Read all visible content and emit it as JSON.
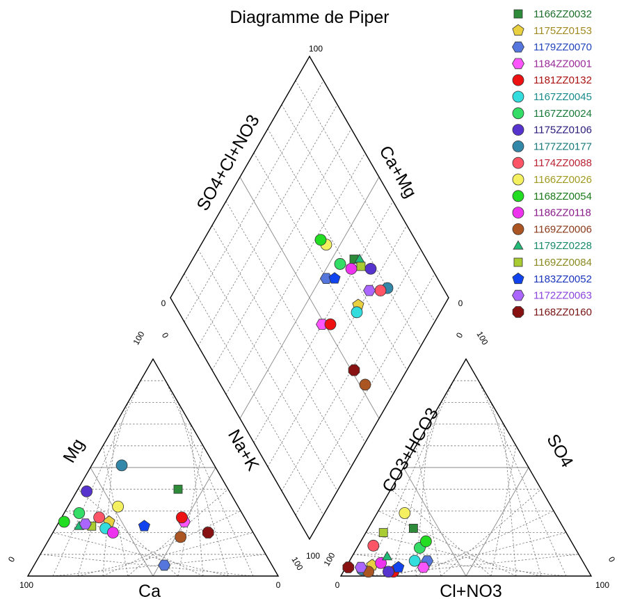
{
  "chart_data": {
    "type": "scatter",
    "title": "Diagramme de Piper",
    "axis_labels": {
      "cation_left": "Mg",
      "cation_right": "Na+K",
      "cation_bottom": "Ca",
      "anion_left": "CO3+HCO3",
      "anion_right": "SO4",
      "anion_bottom": "Cl+NO3",
      "diamond_upper_left": "SO4+Cl+NO3",
      "diamond_upper_right": "Ca+Mg"
    },
    "tick_labels": {
      "cation_bottom_left": "100",
      "cation_bottom_right": "0",
      "cation_left_bottom": "0",
      "cation_top_left": "100",
      "cation_top_right": "0",
      "cation_right_bottom": "100",
      "anion_bottom_left": "0",
      "anion_bottom_right": "100",
      "anion_left_bottom": "100",
      "anion_top_left": "0",
      "anion_top_right": "100",
      "anion_right_bottom": "0",
      "diamond_top": "100",
      "diamond_left": "0",
      "diamond_right": "0",
      "diamond_bottom": "100"
    },
    "grid": true,
    "legend_position": "top-right",
    "series": [
      {
        "name": "1166ZZ0032",
        "color": "#2e8b3a",
        "text_color": "#1a6e2a",
        "marker": "square",
        "ca": 20,
        "mg": 40,
        "hco3": 60,
        "cl": 18,
        "sep_ca": 74,
        "sep_so4": 42
      },
      {
        "name": "1175ZZ0153",
        "color": "#e8d040",
        "text_color": "#a08a20",
        "marker": "pentagon",
        "ca": 55,
        "mg": 25,
        "hco3": 85,
        "cl": 10,
        "sep_ca": 66,
        "sep_so4": 31
      },
      {
        "name": "1179ZZ0070",
        "color": "#5577dd",
        "text_color": "#2244bb",
        "marker": "hexagon",
        "ca": 43,
        "mg": 5,
        "hco3": 62,
        "cl": 31,
        "sep_ca": 60,
        "sep_so4": 48
      },
      {
        "name": "1184ZZ0001",
        "color": "#ff55ff",
        "text_color": "#9a2a9a",
        "marker": "hexagon",
        "ca": 25,
        "mg": 25,
        "hco3": 65,
        "cl": 31,
        "sep_ca": 49,
        "sep_so4": 40
      },
      {
        "name": "1181ZZ0132",
        "color": "#ee1111",
        "text_color": "#aa1111",
        "marker": "circle",
        "ca": 25,
        "mg": 27,
        "hco3": 78,
        "cl": 20,
        "sep_ca": 52,
        "sep_so4": 37
      },
      {
        "name": "1167ZZ0045",
        "color": "#33dddd",
        "text_color": "#1a8a8a",
        "marker": "circle",
        "ca": 58,
        "mg": 22,
        "hco3": 67,
        "cl": 26,
        "sep_ca": 64,
        "sep_so4": 30
      },
      {
        "name": "1167ZZ0024",
        "color": "#33dd66",
        "text_color": "#1a7a3a",
        "marker": "circle",
        "ca": 65,
        "mg": 29,
        "hco3": 62,
        "cl": 25,
        "sep_ca": 68,
        "sep_so4": 46
      },
      {
        "name": "1175ZZ0106",
        "color": "#5533cc",
        "text_color": "#2a1a7a",
        "marker": "circle",
        "ca": 57,
        "mg": 39,
        "hco3": 80,
        "cl": 18,
        "sep_ca": 78,
        "sep_so4": 34
      },
      {
        "name": "1177ZZ0177",
        "color": "#3388aa",
        "text_color": "#1a7a7a",
        "marker": "circle",
        "ca": 37,
        "mg": 51,
        "hco3": 90,
        "cl": 7,
        "sep_ca": 80,
        "sep_so4": 24
      },
      {
        "name": "1174ZZ0088",
        "color": "#ff5566",
        "text_color": "#bb2233",
        "marker": "circle",
        "ca": 58,
        "mg": 27,
        "hco3": 80,
        "cl": 6,
        "sep_ca": 77,
        "sep_so4": 26
      },
      {
        "name": "1166ZZ0026",
        "color": "#f4f060",
        "text_color": "#a09a20",
        "marker": "circle",
        "ca": 48,
        "mg": 32,
        "hco3": 60,
        "cl": 11,
        "sep_ca": 67,
        "sep_so4": 55
      },
      {
        "name": "1168ZZ0054",
        "color": "#22dd22",
        "text_color": "#1a7a1a",
        "marker": "circle",
        "ca": 73,
        "mg": 25,
        "hco3": 58,
        "cl": 26,
        "sep_ca": 66,
        "sep_so4": 58
      },
      {
        "name": "1186ZZ0118",
        "color": "#ee33ee",
        "text_color": "#8a1a8a",
        "marker": "circle",
        "ca": 56,
        "mg": 20,
        "hco3": 81,
        "cl": 13,
        "sep_ca": 71,
        "sep_so4": 41
      },
      {
        "name": "1169ZZ0006",
        "color": "#aa5522",
        "text_color": "#8a3a1a",
        "marker": "circle",
        "ca": 30,
        "mg": 18,
        "hco3": 88,
        "cl": 10,
        "sep_ca": 52,
        "sep_so4": 12
      },
      {
        "name": "1179ZZ0228",
        "color": "#22bb77",
        "text_color": "#1a8a6a",
        "marker": "triangle",
        "ca": 68,
        "mg": 23,
        "hco3": 77,
        "cl": 14,
        "sep_ca": 76,
        "sep_so4": 40
      },
      {
        "name": "1169ZZ0084",
        "color": "#aacc33",
        "text_color": "#8a8a22",
        "marker": "square",
        "ca": 63,
        "mg": 23,
        "hco3": 73,
        "cl": 7,
        "sep_ca": 75,
        "sep_so4": 38
      },
      {
        "name": "1183ZZ0052",
        "color": "#1144ee",
        "text_color": "#1a33bb",
        "marker": "pentagon",
        "ca": 42,
        "mg": 23,
        "hco3": 75,
        "cl": 21,
        "sep_ca": 63,
        "sep_so4": 45
      },
      {
        "name": "1172ZZ0063",
        "color": "#aa66ff",
        "text_color": "#8a44dd",
        "marker": "hexagon",
        "ca": 65,
        "mg": 24,
        "hco3": 90,
        "cl": 6,
        "sep_ca": 73,
        "sep_so4": 30
      },
      {
        "name": "1168ZZ0160",
        "color": "#881111",
        "text_color": "#771111",
        "marker": "octagon",
        "ca": 18,
        "mg": 20,
        "hco3": 95,
        "cl": 1,
        "sep_ca": 51,
        "sep_so4": 19
      }
    ]
  }
}
